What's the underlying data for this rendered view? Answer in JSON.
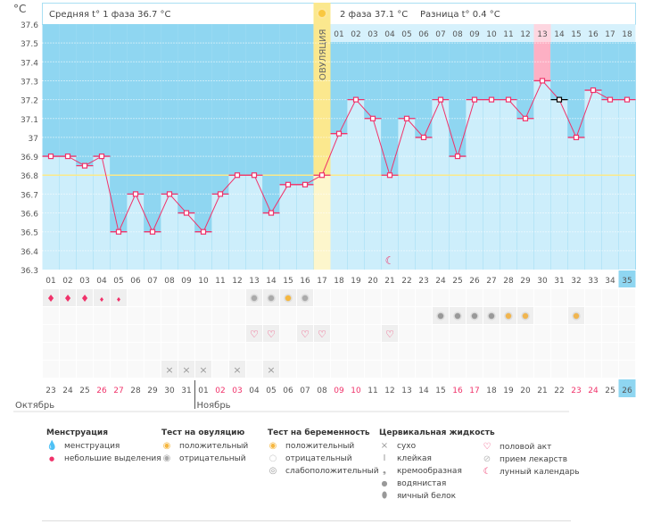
{
  "header": {
    "unit": "°C",
    "phase1": "Средняя t° 1 фаза 36.7 °C",
    "phase2": "2 фаза 37.1 °C",
    "difference": "Разница t° 0.4 °C",
    "ovulation_label": "ОВУЛЯЦИЯ"
  },
  "chart_data": {
    "type": "line",
    "ylabel": "°C",
    "ylim": [
      36.3,
      37.6
    ],
    "yticks": [
      "37.6",
      "37.5",
      "37.4",
      "37.3",
      "37.2",
      "37.1",
      "37",
      "36.9",
      "36.8",
      "36.7",
      "36.6",
      "36.5",
      "36.4",
      "36.3"
    ],
    "coverline": 36.8,
    "ovulation_day": 17,
    "cycle_days": [
      "01",
      "02",
      "03",
      "04",
      "05",
      "06",
      "07",
      "08",
      "09",
      "10",
      "11",
      "12",
      "13",
      "14",
      "15",
      "16",
      "17",
      "18",
      "19",
      "20",
      "21",
      "22",
      "23",
      "24",
      "25",
      "26",
      "27",
      "28",
      "29",
      "30",
      "31",
      "32",
      "33",
      "34",
      "35"
    ],
    "temperatures": [
      36.9,
      36.9,
      36.85,
      36.9,
      36.5,
      36.7,
      36.5,
      36.7,
      36.6,
      36.5,
      36.7,
      36.8,
      36.8,
      36.6,
      36.75,
      36.75,
      36.8,
      37.02,
      37.2,
      37.1,
      36.8,
      37.1,
      37.0,
      37.2,
      36.9,
      37.2,
      37.2,
      37.2,
      37.1,
      37.3,
      37.2,
      37.0,
      37.25,
      37.2,
      37.2
    ],
    "black_point_day": 31,
    "highlight_pink_day": 30,
    "luteal_days": [
      "01",
      "02",
      "03",
      "04",
      "05",
      "06",
      "07",
      "08",
      "09",
      "10",
      "11",
      "12",
      "13",
      "14",
      "15",
      "16",
      "17",
      "18"
    ],
    "dates": [
      "23",
      "24",
      "25",
      "26",
      "27",
      "28",
      "29",
      "30",
      "31",
      "01",
      "02",
      "03",
      "04",
      "05",
      "06",
      "07",
      "08",
      "09",
      "10",
      "11",
      "12",
      "13",
      "14",
      "15",
      "16",
      "17",
      "18",
      "19",
      "20",
      "21",
      "22",
      "23",
      "24",
      "25",
      "26"
    ],
    "weekend_dates_idx": [
      3,
      4,
      10,
      11,
      17,
      18,
      24,
      25,
      31,
      32
    ],
    "today_day": 35,
    "months": [
      {
        "label": "Октябрь",
        "start_day": 1
      },
      {
        "label": "Ноябрь",
        "start_day": 10
      }
    ],
    "moon_day": 21,
    "markers": {
      "menstruation_heavy": [
        1,
        2,
        3
      ],
      "menstruation_light": [
        4,
        5
      ],
      "ovulation_test_negative": [
        13,
        14,
        16
      ],
      "ovulation_test_positive": [
        15
      ],
      "pregnancy_test_weak": [
        24,
        25,
        26,
        27
      ],
      "pregnancy_test_positive": [
        28,
        29,
        32
      ],
      "intercourse": [
        13,
        14,
        16,
        17,
        21
      ],
      "cervical_dry": [
        8,
        9,
        10,
        12,
        14
      ]
    }
  },
  "colors": {
    "dark_blue": "#8fd6f1",
    "light_blue": "#cdeefb",
    "line": "#f0326a",
    "coverline": "#fbe98a",
    "ovulation": "#fbe88e",
    "pink": "#fdb0c4",
    "weekend": "#f0326a"
  },
  "legend": {
    "menstruation": {
      "title": "Менструация",
      "items": [
        "менструация",
        "небольшие выделения"
      ]
    },
    "ovulation_test": {
      "title": "Тест на овуляцию",
      "items": [
        "положительный",
        "отрицательный"
      ]
    },
    "pregnancy_test": {
      "title": "Тест на беременность",
      "items": [
        "положительный",
        "отрицательный",
        "слабоположительный"
      ]
    },
    "cervical": {
      "title": "Цервикальная жидкость",
      "items": [
        "сухо",
        "клейкая",
        "кремообразная",
        "водянистая",
        "яичный белок"
      ]
    },
    "other": {
      "items": [
        "половой акт",
        "прием лекарств",
        "лунный календарь"
      ]
    }
  }
}
